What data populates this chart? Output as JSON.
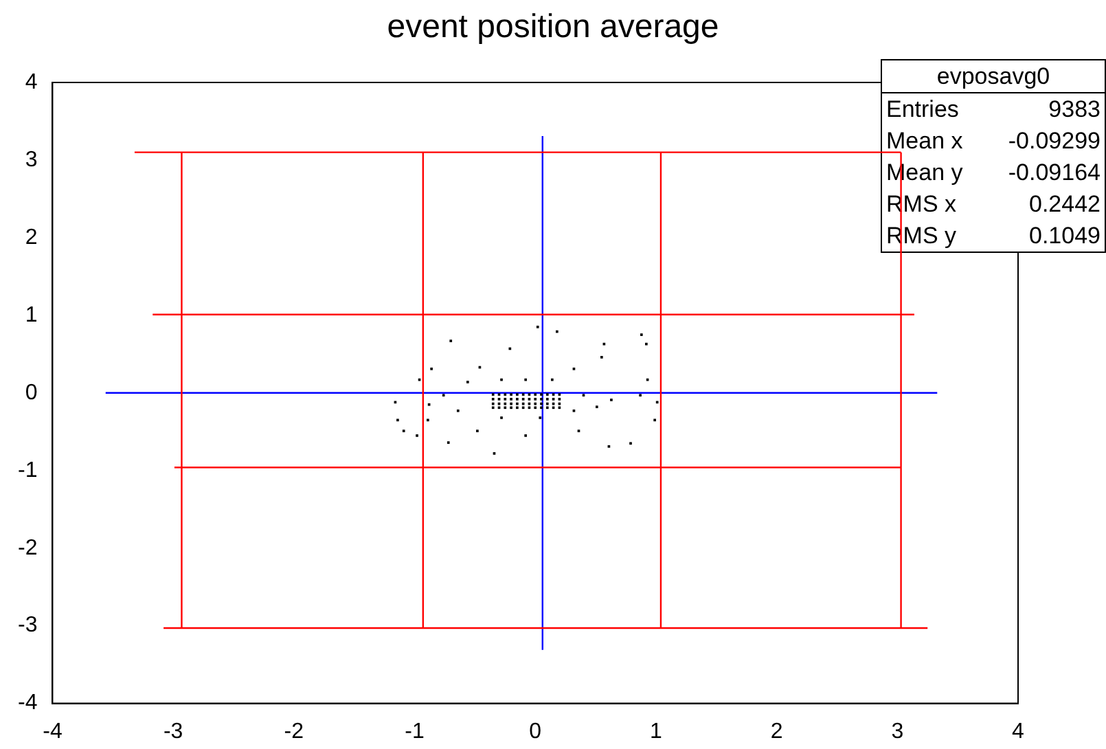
{
  "chart_data": {
    "type": "scatter",
    "title": "event position average",
    "xlim": [
      -4,
      4
    ],
    "xticks": [
      -4,
      -3,
      -2,
      -1,
      0,
      1,
      2,
      3,
      4
    ],
    "ylim": [
      -4,
      4
    ],
    "yticks": [
      -4,
      -3,
      -2,
      -1,
      0,
      1,
      2,
      3,
      4
    ],
    "grid": false,
    "legend": false,
    "series": [
      {
        "marker": "square",
        "color": "#000000",
        "x": [
          0.02,
          0.18,
          -0.7,
          0.88,
          0.92,
          0.57,
          -0.21,
          -0.86,
          -0.46,
          0.32,
          0.55,
          -0.96,
          0.93,
          -1.16,
          -1.14,
          -1.09,
          -0.98,
          -0.72,
          -0.34,
          0.61,
          0.79,
          0.99,
          1.01,
          0.87,
          -0.89,
          0.36,
          -0.08,
          -0.48,
          -0.56,
          -0.28,
          -0.08,
          0.14,
          -0.76,
          0.4,
          0.63,
          -0.88,
          -0.64,
          -0.28,
          0.04,
          0.32,
          0.51,
          -0.35,
          -0.3,
          -0.25,
          -0.2,
          -0.15,
          -0.1,
          -0.05,
          0.0,
          0.05,
          0.1,
          0.15,
          0.2,
          -0.35,
          -0.3,
          -0.25,
          -0.2,
          -0.15,
          -0.1,
          -0.05,
          0.0,
          0.05,
          0.1,
          0.15,
          0.2,
          -0.35,
          -0.3,
          -0.25,
          -0.2,
          -0.15,
          -0.1,
          -0.05,
          0.0,
          0.05,
          0.1,
          0.15,
          0.2,
          -0.35,
          -0.3,
          -0.25,
          -0.2,
          -0.15,
          -0.1,
          -0.05,
          0.0,
          0.05,
          0.1,
          0.15,
          0.2
        ],
        "values": [
          0.85,
          0.79,
          0.67,
          0.75,
          0.63,
          0.63,
          0.57,
          0.31,
          0.33,
          0.31,
          0.46,
          0.17,
          0.17,
          -0.12,
          -0.35,
          -0.49,
          -0.55,
          -0.64,
          -0.78,
          -0.69,
          -0.65,
          -0.35,
          -0.12,
          -0.03,
          -0.35,
          -0.49,
          -0.55,
          -0.49,
          0.14,
          0.17,
          0.17,
          0.17,
          -0.03,
          -0.03,
          -0.09,
          -0.15,
          -0.23,
          -0.32,
          -0.32,
          -0.23,
          -0.18,
          -0.02,
          -0.02,
          -0.02,
          -0.02,
          -0.02,
          -0.02,
          -0.02,
          -0.02,
          -0.02,
          -0.02,
          -0.02,
          -0.02,
          -0.08,
          -0.08,
          -0.08,
          -0.08,
          -0.08,
          -0.08,
          -0.08,
          -0.08,
          -0.08,
          -0.08,
          -0.08,
          -0.08,
          -0.14,
          -0.14,
          -0.14,
          -0.14,
          -0.14,
          -0.14,
          -0.14,
          -0.14,
          -0.14,
          -0.14,
          -0.14,
          -0.14,
          -0.19,
          -0.19,
          -0.19,
          -0.19,
          -0.19,
          -0.19,
          -0.19,
          -0.19,
          -0.19,
          -0.19,
          -0.19,
          -0.19
        ]
      },
      {
        "type": "line",
        "marker": "none",
        "color": "#ff0000",
        "x": [
          -3.32,
          3.03
        ],
        "values": [
          3.1,
          3.1
        ]
      },
      {
        "type": "line",
        "marker": "none",
        "color": "#ff0000",
        "x": [
          -3.17,
          3.14
        ],
        "values": [
          1.01,
          1.01
        ]
      },
      {
        "type": "line",
        "marker": "none",
        "color": "#ff0000",
        "x": [
          -2.99,
          3.03
        ],
        "values": [
          -0.96,
          -0.96
        ]
      },
      {
        "type": "line",
        "marker": "none",
        "color": "#ff0000",
        "x": [
          -3.08,
          3.25
        ],
        "values": [
          -3.03,
          -3.03
        ]
      },
      {
        "type": "line",
        "marker": "none",
        "color": "#ff0000",
        "x": [
          -2.93,
          -2.93
        ],
        "values": [
          -3.03,
          3.1
        ]
      },
      {
        "type": "line",
        "marker": "none",
        "color": "#ff0000",
        "x": [
          -0.93,
          -0.93
        ],
        "values": [
          -3.03,
          3.1
        ]
      },
      {
        "type": "line",
        "marker": "none",
        "color": "#ff0000",
        "x": [
          1.04,
          1.04
        ],
        "values": [
          -3.03,
          3.1
        ]
      },
      {
        "type": "line",
        "marker": "none",
        "color": "#ff0000",
        "x": [
          3.03,
          3.03
        ],
        "values": [
          -3.03,
          3.1
        ]
      },
      {
        "type": "line",
        "marker": "none",
        "color": "#0000ff",
        "x": [
          -3.56,
          3.33
        ],
        "values": [
          0,
          0
        ]
      },
      {
        "type": "line",
        "marker": "none",
        "color": "#0000ff",
        "x": [
          0.06,
          0.06
        ],
        "values": [
          -3.31,
          3.31
        ]
      }
    ],
    "annotations": [
      "evposavg0",
      "Entries",
      "9383",
      "Mean x",
      "-0.09299",
      "Mean y",
      "-0.09164",
      "RMS x",
      "0.2442",
      "RMS y",
      "0.1049"
    ]
  }
}
